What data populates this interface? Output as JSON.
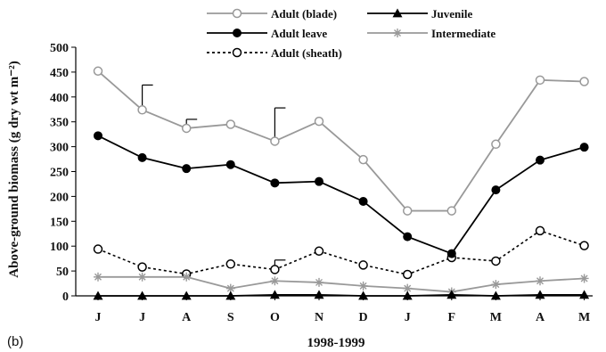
{
  "chart_data": {
    "type": "line",
    "panel_label": "(b)",
    "title": "",
    "xlabel": "1998-1999",
    "ylabel": "Above-ground biomass (g dry wt m⁻²)",
    "ylim": [
      0,
      500
    ],
    "yticks": [
      0,
      50,
      100,
      150,
      200,
      250,
      300,
      350,
      400,
      450,
      500
    ],
    "categories": [
      "J",
      "J",
      "A",
      "S",
      "O",
      "N",
      "D",
      "J",
      "F",
      "M",
      "A",
      "M"
    ],
    "grid": false,
    "legend_position": "top",
    "series": [
      {
        "name": "Adult (blade)",
        "color": "#999999",
        "line": "solid",
        "marker": "open-circle",
        "values": [
          452,
          374,
          337,
          345,
          311,
          351,
          274,
          171,
          171,
          305,
          434,
          431
        ]
      },
      {
        "name": "Juvenile",
        "color": "#000000",
        "line": "solid",
        "marker": "filled-triangle",
        "values": [
          0,
          0,
          0,
          0,
          2,
          2,
          0,
          0,
          2,
          0,
          2,
          2
        ]
      },
      {
        "name": "Adult leave",
        "color": "#000000",
        "line": "solid",
        "marker": "filled-circle",
        "values": [
          322,
          278,
          256,
          264,
          227,
          230,
          190,
          119,
          85,
          213,
          273,
          299
        ]
      },
      {
        "name": "Intermediate",
        "color": "#999999",
        "line": "solid",
        "marker": "star",
        "values": [
          38,
          38,
          38,
          15,
          30,
          27,
          20,
          15,
          8,
          23,
          30,
          35
        ]
      },
      {
        "name": "Adult (sheath)",
        "color": "#000000",
        "line": "dotted",
        "marker": "open-circle",
        "values": [
          94,
          58,
          44,
          64,
          53,
          90,
          62,
          43,
          77,
          70,
          131,
          101
        ]
      }
    ],
    "error_bars": [
      {
        "series": "Adult (blade)",
        "index": 1,
        "upper": 424
      },
      {
        "series": "Adult (blade)",
        "index": 2,
        "upper": 355
      },
      {
        "series": "Adult (blade)",
        "index": 4,
        "upper": 378
      },
      {
        "series": "Adult (sheath)",
        "index": 4,
        "upper": 72
      }
    ]
  }
}
